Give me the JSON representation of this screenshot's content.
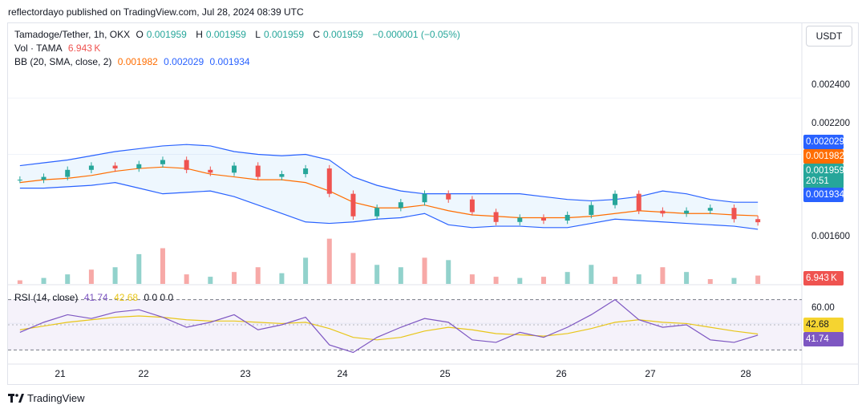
{
  "header": {
    "published": "reflectordayo published on TradingView.com, Jul 28, 2024 08:39 UTC"
  },
  "legend": {
    "symbol": "Tamadoge/Tether, 1h, OKX",
    "o_label": "O",
    "o": "0.001959",
    "h_label": "H",
    "h": "0.001959",
    "l_label": "L",
    "l": "0.001959",
    "c_label": "C",
    "c": "0.001959",
    "change": "−0.000001 (−0.05%)",
    "vol_label": "Vol · TAMA",
    "vol_value": "6.943 K",
    "bb_label": "BB (20, SMA, close, 2)",
    "bb_basis": "0.001982",
    "bb_upper": "0.002029",
    "bb_lower": "0.001934",
    "rsi_label": "RSI (14, close)",
    "rsi_value": "41.74",
    "rsi_ma": "42.68",
    "rsi_extra": "0 0 0 0"
  },
  "currency": "USDT",
  "price_axis": {
    "ticks": [
      "0.002400",
      "0.002200",
      "0.001600"
    ],
    "tags": {
      "upper": "0.002029",
      "basis": "0.001982",
      "close": "0.001959",
      "countdown": "20:51",
      "lower": "0.001934",
      "volume": "6.943 K"
    }
  },
  "rsi_axis": {
    "ticks": [
      "60.00"
    ],
    "tag_ma": "42.68",
    "tag_rsi": "41.74"
  },
  "colors": {
    "up": "#26a69a",
    "down": "#ef5350",
    "basis": "#ff6d00",
    "band": "#2962ff",
    "rsi": "#7e57c2",
    "rsi_ma": "#e8c619"
  },
  "footer": {
    "logo_icon": "tradingview-logo-icon",
    "brand": "TradingView"
  },
  "chart_data": {
    "type": "candlestick",
    "x_ticks": [
      "21",
      "22",
      "23",
      "24",
      "25",
      "26",
      "27",
      "28"
    ],
    "price_ylim": [
      0.00178,
      0.0026
    ],
    "bb_upper": [
      0.00216,
      0.00217,
      0.00218,
      0.002195,
      0.00221,
      0.00222,
      0.00223,
      0.002235,
      0.00223,
      0.00221,
      0.0022,
      0.002195,
      0.0022,
      0.00218,
      0.00212,
      0.00209,
      0.00207,
      0.00206,
      0.00206,
      0.00206,
      0.00206,
      0.00206,
      0.00205,
      0.00204,
      0.002035,
      0.00204,
      0.00205,
      0.00207,
      0.00206,
      0.00204,
      0.00203,
      0.00203
    ],
    "bb_basis": [
      0.0021,
      0.00211,
      0.002115,
      0.002125,
      0.00214,
      0.00215,
      0.002155,
      0.00215,
      0.00213,
      0.00212,
      0.00211,
      0.00211,
      0.0021,
      0.00207,
      0.00203,
      0.00201,
      0.00201,
      0.00202,
      0.002,
      0.001985,
      0.00198,
      0.001975,
      0.001975,
      0.001975,
      0.00198,
      0.00199,
      0.002,
      0.001995,
      0.00199,
      0.00199,
      0.001985,
      0.001982
    ],
    "bb_lower": [
      0.00208,
      0.00208,
      0.002085,
      0.00209,
      0.0021,
      0.00208,
      0.00206,
      0.002065,
      0.00207,
      0.00205,
      0.00202,
      0.00199,
      0.00196,
      0.001955,
      0.00196,
      0.00197,
      0.001975,
      0.00199,
      0.00195,
      0.00194,
      0.001945,
      0.001945,
      0.00194,
      0.00194,
      0.001955,
      0.00197,
      0.001965,
      0.00196,
      0.001955,
      0.00195,
      0.001945,
      0.001934
    ],
    "closes": [
      0.00211,
      0.00212,
      0.002145,
      0.00216,
      0.00215,
      0.002165,
      0.00218,
      0.002145,
      0.002135,
      0.00216,
      0.00212,
      0.00213,
      0.00215,
      0.00206,
      0.00198,
      0.00201,
      0.00203,
      0.00206,
      0.00204,
      0.001995,
      0.00196,
      0.001975,
      0.001965,
      0.001985,
      0.00202,
      0.00206,
      0.002,
      0.00199,
      0.002,
      0.00201,
      0.00197,
      0.001959
    ],
    "volume_ylim": [
      0,
      60
    ],
    "volumes": [
      3,
      5,
      8,
      12,
      14,
      25,
      30,
      8,
      6,
      10,
      14,
      9,
      22,
      38,
      26,
      16,
      14,
      22,
      20,
      8,
      6,
      5,
      6,
      10,
      16,
      6,
      8,
      14,
      10,
      4,
      5,
      7
    ],
    "volume_up": [
      false,
      true,
      true,
      false,
      true,
      true,
      false,
      false,
      true,
      false,
      false,
      true,
      true,
      false,
      false,
      true,
      true,
      false,
      true,
      false,
      false,
      true,
      false,
      true,
      true,
      false,
      true,
      false,
      true,
      false,
      true,
      false
    ],
    "rsi_ylim": [
      20,
      80
    ],
    "rsi_levels": [
      70,
      30
    ],
    "rsi": [
      44,
      52,
      58,
      55,
      60,
      62,
      56,
      48,
      52,
      58,
      46,
      50,
      56,
      34,
      28,
      40,
      48,
      55,
      52,
      38,
      36,
      44,
      40,
      48,
      58,
      70,
      54,
      48,
      50,
      38,
      36,
      41.74
    ],
    "rsi_ma_series": [
      46,
      49,
      52,
      54,
      56,
      57,
      56,
      54,
      53,
      53,
      52,
      51,
      52,
      47,
      40,
      38,
      40,
      45,
      48,
      46,
      43,
      42,
      41,
      43,
      47,
      52,
      54,
      52,
      51,
      48,
      45,
      42.68
    ]
  }
}
